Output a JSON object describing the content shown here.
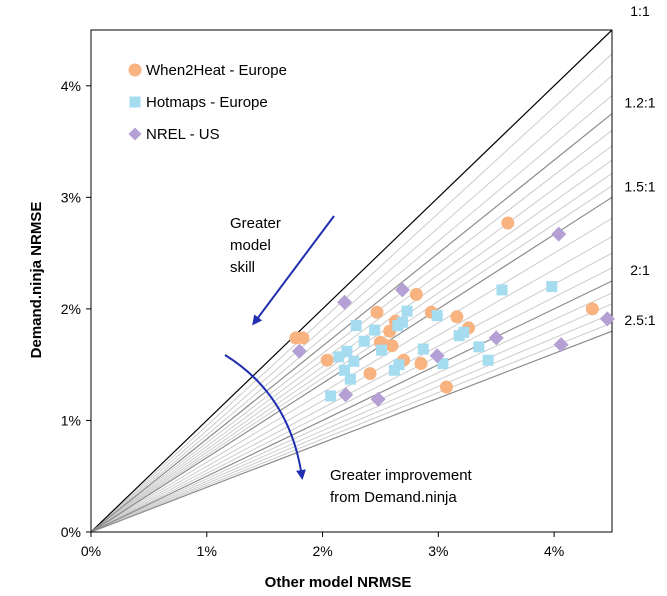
{
  "chart_data": {
    "type": "scatter",
    "xlabel": "Other model NRMSE",
    "ylabel": "Demand.ninja NRMSE",
    "xlim": [
      0,
      4.5
    ],
    "ylim": [
      0,
      4.5
    ],
    "x_ticks": [
      {
        "value": 0,
        "label": "0%"
      },
      {
        "value": 1,
        "label": "1%"
      },
      {
        "value": 2,
        "label": "2%"
      },
      {
        "value": 3,
        "label": "3%"
      },
      {
        "value": 4,
        "label": "4%"
      }
    ],
    "y_ticks": [
      {
        "value": 0,
        "label": "0%"
      },
      {
        "value": 1,
        "label": "1%"
      },
      {
        "value": 2,
        "label": "2%"
      },
      {
        "value": 3,
        "label": "3%"
      },
      {
        "value": 4,
        "label": "4%"
      }
    ],
    "grid": false,
    "legend_position": "top-left",
    "reference_lines": {
      "labeled": [
        {
          "ratio": 1.0,
          "label": "1:1",
          "color": "#000000"
        },
        {
          "ratio": 1.2,
          "label": "1.2:1",
          "color": "#8c8c8c"
        },
        {
          "ratio": 1.5,
          "label": "1.5:1",
          "color": "#8c8c8c"
        },
        {
          "ratio": 2.0,
          "label": "2:1",
          "color": "#8c8c8c"
        },
        {
          "ratio": 2.5,
          "label": "2.5:1",
          "color": "#8c8c8c"
        }
      ],
      "minor_ratios": [
        1.05,
        1.1,
        1.15,
        1.25,
        1.3,
        1.35,
        1.4,
        1.45,
        1.6,
        1.7,
        1.8,
        1.9,
        2.1,
        2.2,
        2.3,
        2.4
      ],
      "minor_color": "#cccccc"
    },
    "series": [
      {
        "name": "When2Heat - Europe",
        "marker": "circle",
        "color": "#f8b381",
        "points": [
          [
            1.77,
            1.74
          ],
          [
            1.83,
            1.74
          ],
          [
            2.04,
            1.54
          ],
          [
            2.41,
            1.42
          ],
          [
            2.47,
            1.97
          ],
          [
            2.5,
            1.7
          ],
          [
            2.53,
            1.68
          ],
          [
            2.58,
            1.8
          ],
          [
            2.6,
            1.67
          ],
          [
            2.63,
            1.89
          ],
          [
            2.65,
            1.86
          ],
          [
            2.7,
            1.54
          ],
          [
            2.81,
            2.13
          ],
          [
            2.85,
            1.51
          ],
          [
            2.94,
            1.97
          ],
          [
            3.07,
            1.3
          ],
          [
            3.16,
            1.93
          ],
          [
            3.26,
            1.83
          ],
          [
            3.6,
            2.77
          ],
          [
            4.33,
            2.0
          ]
        ]
      },
      {
        "name": "Hotmaps - Europe",
        "marker": "square",
        "color": "#a5dcf0",
        "points": [
          [
            2.07,
            1.22
          ],
          [
            2.14,
            1.57
          ],
          [
            2.19,
            1.45
          ],
          [
            2.21,
            1.62
          ],
          [
            2.24,
            1.37
          ],
          [
            2.27,
            1.53
          ],
          [
            2.29,
            1.85
          ],
          [
            2.36,
            1.71
          ],
          [
            2.45,
            1.81
          ],
          [
            2.51,
            1.63
          ],
          [
            2.62,
            1.45
          ],
          [
            2.65,
            1.85
          ],
          [
            2.66,
            1.5
          ],
          [
            2.69,
            1.88
          ],
          [
            2.73,
            1.98
          ],
          [
            2.87,
            1.64
          ],
          [
            2.99,
            1.94
          ],
          [
            3.04,
            1.51
          ],
          [
            3.18,
            1.76
          ],
          [
            3.22,
            1.79
          ],
          [
            3.35,
            1.66
          ],
          [
            3.43,
            1.54
          ],
          [
            3.55,
            2.17
          ],
          [
            3.98,
            2.2
          ]
        ]
      },
      {
        "name": "NREL - US",
        "marker": "diamond",
        "color": "#b4a0d4",
        "points": [
          [
            1.8,
            1.62
          ],
          [
            2.19,
            2.06
          ],
          [
            2.2,
            1.23
          ],
          [
            2.48,
            1.19
          ],
          [
            2.69,
            2.17
          ],
          [
            2.99,
            1.58
          ],
          [
            3.5,
            1.74
          ],
          [
            4.04,
            2.67
          ],
          [
            4.06,
            1.68
          ],
          [
            4.46,
            1.91
          ]
        ]
      }
    ],
    "annotations": [
      {
        "text_lines": [
          "Greater",
          "model",
          "skill"
        ],
        "arrow_color": "#1f2fb0"
      },
      {
        "text_lines": [
          "Greater improvement",
          "from Demand.ninja"
        ],
        "arrow_color": "#1f2fb0"
      }
    ]
  }
}
